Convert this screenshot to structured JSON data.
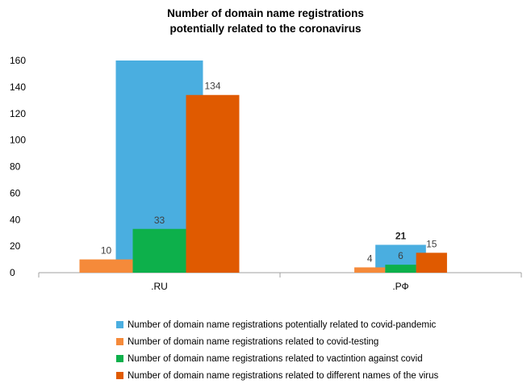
{
  "chart_data": {
    "type": "bar",
    "title_lines": [
      "Number of domain name registrations",
      "potentially related to the coronavirus"
    ],
    "categories": [
      ".RU",
      ".РФ"
    ],
    "ylim": [
      0,
      160
    ],
    "yticks": [
      0,
      20,
      40,
      60,
      80,
      100,
      120,
      140,
      160
    ],
    "grid": false,
    "legend_position": "bottom",
    "series": [
      {
        "name": "Number of domain name registrations potentially related to covid-pandemic",
        "color": "#4aaee0",
        "values": [
          160,
          21
        ],
        "labels": [
          "",
          "21"
        ],
        "bold_label": true
      },
      {
        "name": "Number of domain name registrations related to covid-testing",
        "color": "#f58a3a",
        "values": [
          10,
          4
        ],
        "labels": [
          "10",
          "4"
        ]
      },
      {
        "name": "Number of domain name registrations related to vactintion against covid",
        "color": "#0db04b",
        "values": [
          33,
          6
        ],
        "labels": [
          "33",
          "6"
        ]
      },
      {
        "name": "Number of domain name registrations related to different names of the virus",
        "color": "#e05a00",
        "values": [
          134,
          15
        ],
        "labels": [
          "134",
          "15"
        ]
      }
    ]
  }
}
